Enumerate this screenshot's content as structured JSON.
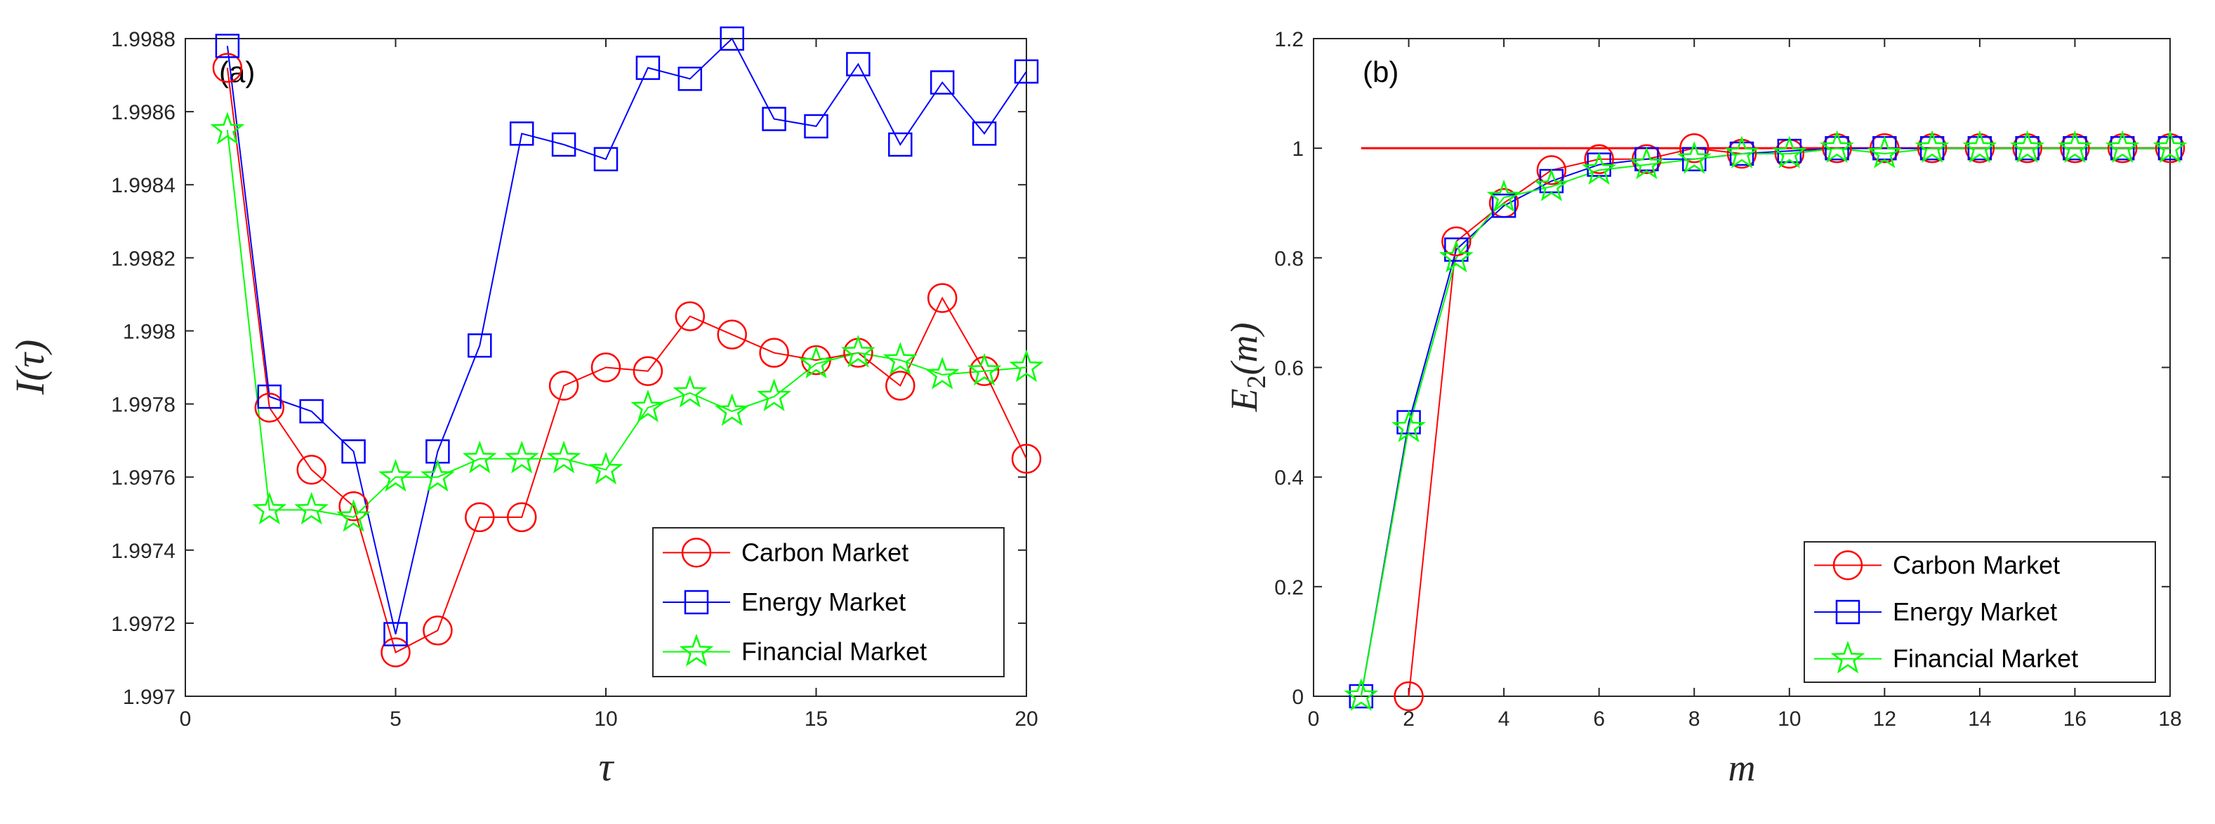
{
  "chart_data": [
    {
      "type": "line",
      "panel_label": "(a)",
      "xlabel": "τ",
      "ylabel": "I(τ)",
      "xlim": [
        0,
        20
      ],
      "ylim": [
        1.997,
        1.9988
      ],
      "xticks": [
        0,
        5,
        10,
        15,
        20
      ],
      "xtick_labels": [
        "0",
        "5",
        "10",
        "15",
        "20"
      ],
      "yticks": [
        1.997,
        1.9972,
        1.9974,
        1.9976,
        1.9978,
        1.998,
        1.9982,
        1.9984,
        1.9986,
        1.9988
      ],
      "ytick_labels": [
        "1.997",
        "1.9972",
        "1.9974",
        "1.9976",
        "1.9978",
        "1.998",
        "1.9982",
        "1.9984",
        "1.9986",
        "1.9988"
      ],
      "legend_position": "bottom-right",
      "x": [
        1,
        2,
        3,
        4,
        5,
        6,
        7,
        8,
        9,
        10,
        11,
        12,
        13,
        14,
        15,
        16,
        17,
        18,
        19,
        20
      ],
      "series": [
        {
          "name": "Carbon Market",
          "color": "#ff0000",
          "marker": "circle",
          "values": [
            1.99872,
            1.99779,
            1.99762,
            1.99752,
            1.99712,
            1.99718,
            1.99749,
            1.99749,
            1.99785,
            1.9979,
            1.99789,
            1.99804,
            1.99799,
            1.99794,
            1.99792,
            1.99794,
            1.99785,
            1.99809,
            1.99789,
            1.99765
          ]
        },
        {
          "name": "Energy Market",
          "color": "#0000ff",
          "marker": "square",
          "values": [
            1.99878,
            1.99782,
            1.99778,
            1.99767,
            1.99717,
            1.99767,
            1.99796,
            1.99854,
            1.99851,
            1.99847,
            1.99872,
            1.99869,
            1.9988,
            1.99858,
            1.99856,
            1.99873,
            1.99851,
            1.99868,
            1.99854,
            1.99871
          ]
        },
        {
          "name": "Financial Market",
          "color": "#00ff00",
          "marker": "star",
          "values": [
            1.99855,
            1.99751,
            1.99751,
            1.99749,
            1.9976,
            1.9976,
            1.99765,
            1.99765,
            1.99765,
            1.99762,
            1.99779,
            1.99783,
            1.99778,
            1.99782,
            1.99791,
            1.99794,
            1.99792,
            1.99788,
            1.99789,
            1.9979
          ]
        }
      ]
    },
    {
      "type": "line",
      "panel_label": "(b)",
      "xlabel": "m",
      "ylabel_base": "E",
      "ylabel_sub": "2",
      "ylabel_arg": "(m)",
      "xlim": [
        0,
        18
      ],
      "ylim": [
        0,
        1.2
      ],
      "xticks": [
        0,
        2,
        4,
        6,
        8,
        10,
        12,
        14,
        16,
        18
      ],
      "xtick_labels": [
        "0",
        "2",
        "4",
        "6",
        "8",
        "10",
        "12",
        "14",
        "16",
        "18"
      ],
      "yticks": [
        0,
        0.2,
        0.4,
        0.6,
        0.8,
        1,
        1.2
      ],
      "ytick_labels": [
        "0",
        "0.2",
        "0.4",
        "0.6",
        "0.8",
        "1",
        "1.2"
      ],
      "legend_position": "bottom-right",
      "reference_line": {
        "y": 1,
        "x_from": 1,
        "x_to": 18,
        "color": "#ff0000"
      },
      "x": [
        1,
        2,
        3,
        4,
        5,
        6,
        7,
        8,
        9,
        10,
        11,
        12,
        13,
        14,
        15,
        16,
        17,
        18
      ],
      "series": [
        {
          "name": "Carbon Market",
          "color": "#ff0000",
          "marker": "circle",
          "values": [
            null,
            0,
            0.83,
            0.9,
            0.96,
            0.98,
            0.98,
            1.0,
            0.99,
            0.99,
            1.0,
            1.0,
            1.0,
            1.0,
            1.0,
            1.0,
            1.0,
            1.0
          ]
        },
        {
          "name": "Energy Market",
          "color": "#0000ff",
          "marker": "square",
          "values": [
            0,
            0.5,
            0.815,
            0.895,
            0.94,
            0.97,
            0.98,
            0.98,
            0.99,
            0.995,
            1.0,
            1.0,
            1.0,
            1.0,
            1.0,
            1.0,
            1.0,
            1.0
          ]
        },
        {
          "name": "Financial Market",
          "color": "#00ff00",
          "marker": "star",
          "values": [
            0,
            0.49,
            0.8,
            0.91,
            0.93,
            0.96,
            0.97,
            0.98,
            0.99,
            0.99,
            1.0,
            0.99,
            1.0,
            1.0,
            1.0,
            1.0,
            1.0,
            1.0
          ]
        }
      ]
    }
  ]
}
